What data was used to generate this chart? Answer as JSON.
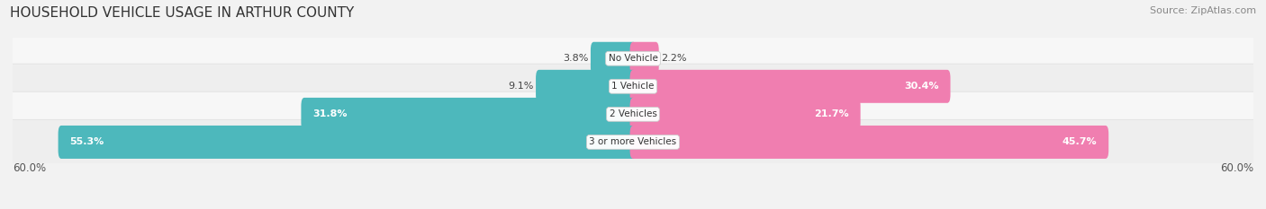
{
  "title": "HOUSEHOLD VEHICLE USAGE IN ARTHUR COUNTY",
  "source": "Source: ZipAtlas.com",
  "categories": [
    "No Vehicle",
    "1 Vehicle",
    "2 Vehicles",
    "3 or more Vehicles"
  ],
  "owner_values": [
    3.8,
    9.1,
    31.8,
    55.3
  ],
  "renter_values": [
    2.2,
    30.4,
    21.7,
    45.7
  ],
  "owner_color": "#4db8bc",
  "renter_color": "#f07eb0",
  "axis_max": 60.0,
  "bg_color": "#f2f2f2",
  "row_bg_light": "#f7f7f7",
  "row_bg_dark": "#eeeeee",
  "axis_label_left": "60.0%",
  "axis_label_right": "60.0%",
  "title_fontsize": 11,
  "source_fontsize": 8,
  "label_fontsize": 8,
  "cat_fontsize": 7.5
}
